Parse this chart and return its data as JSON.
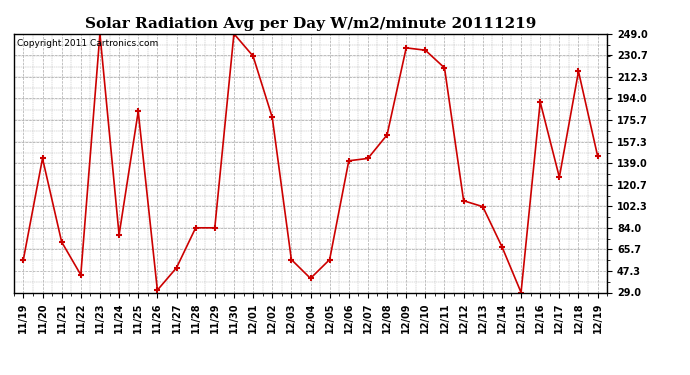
{
  "title": "Solar Radiation Avg per Day W/m2/minute 20111219",
  "copyright_text": "Copyright 2011 Cartronics.com",
  "dates": [
    "11/19",
    "11/20",
    "11/21",
    "11/22",
    "11/23",
    "11/24",
    "11/25",
    "11/26",
    "11/27",
    "11/28",
    "11/29",
    "11/30",
    "12/01",
    "12/02",
    "12/03",
    "12/04",
    "12/05",
    "12/06",
    "12/07",
    "12/08",
    "12/09",
    "12/10",
    "12/11",
    "12/12",
    "12/13",
    "12/14",
    "12/15",
    "12/16",
    "12/17",
    "12/18",
    "12/19"
  ],
  "values": [
    57,
    143,
    72,
    44,
    249,
    78,
    183,
    31,
    50,
    84,
    84,
    249,
    230,
    178,
    57,
    41,
    57,
    141,
    143,
    163,
    237,
    235,
    220,
    107,
    102,
    68,
    29,
    191,
    127,
    217,
    145
  ],
  "yticks": [
    29.0,
    47.3,
    65.7,
    84.0,
    102.3,
    120.7,
    139.0,
    157.3,
    175.7,
    194.0,
    212.3,
    230.7,
    249.0
  ],
  "ymin": 29.0,
  "ymax": 249.0,
  "line_color": "#cc0000",
  "marker_color": "#cc0000",
  "background_color": "#ffffff",
  "plot_bg_color": "#ffffff",
  "grid_color": "#aaaaaa",
  "title_fontsize": 11,
  "tick_fontsize": 7,
  "copyright_fontsize": 6.5
}
